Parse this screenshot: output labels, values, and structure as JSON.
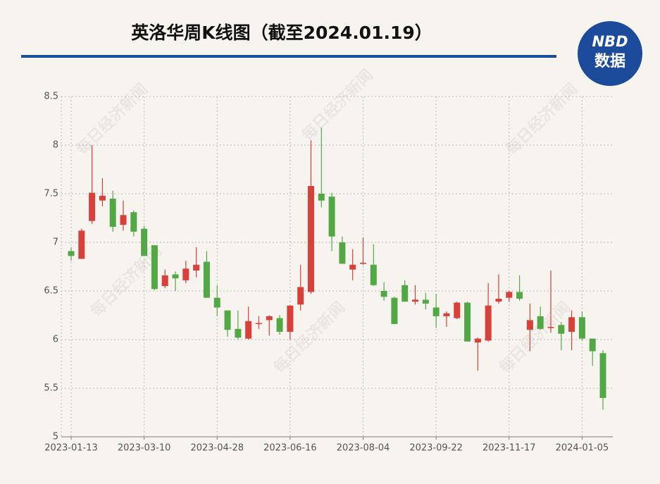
{
  "chart_data": {
    "type": "candlestick",
    "title": "英洛华周K线图（截至2024.01.19）",
    "logo": [
      "NBD",
      "数据"
    ],
    "watermark": "每日经济新闻",
    "categories": [
      "2023-01-13",
      null,
      null,
      null,
      null,
      null,
      null,
      "2023-03-10",
      null,
      null,
      null,
      null,
      null,
      null,
      "2023-04-28",
      null,
      null,
      null,
      null,
      null,
      null,
      "2023-06-16",
      null,
      null,
      null,
      null,
      null,
      null,
      "2023-08-04",
      null,
      null,
      null,
      null,
      null,
      null,
      "2023-09-22",
      null,
      null,
      null,
      null,
      null,
      null,
      "2023-11-17",
      null,
      null,
      null,
      null,
      null,
      null,
      "2024-01-05",
      null,
      null
    ],
    "open": [
      6.91,
      6.83,
      7.22,
      7.43,
      7.45,
      7.18,
      7.31,
      7.14,
      6.97,
      6.55,
      6.67,
      6.61,
      6.71,
      6.8,
      6.43,
      6.3,
      6.11,
      6.01,
      6.16,
      6.2,
      6.22,
      6.08,
      6.36,
      6.49,
      7.5,
      7.47,
      7.0,
      6.72,
      6.78,
      6.77,
      6.5,
      6.43,
      6.56,
      6.39,
      6.41,
      6.33,
      6.24,
      6.22,
      6.38,
      5.97,
      5.99,
      6.39,
      6.43,
      6.49,
      6.1,
      6.24,
      6.12,
      6.15,
      6.08,
      6.23,
      6.01,
      5.86
    ],
    "high": [
      6.95,
      7.14,
      8.0,
      7.66,
      7.53,
      7.43,
      7.33,
      7.17,
      6.97,
      6.72,
      6.7,
      6.81,
      6.95,
      6.91,
      6.56,
      6.3,
      6.3,
      6.34,
      6.24,
      6.25,
      6.25,
      6.35,
      6.77,
      8.05,
      8.18,
      7.51,
      7.06,
      6.93,
      7.05,
      6.98,
      6.59,
      6.44,
      6.61,
      6.56,
      6.48,
      6.47,
      6.29,
      6.39,
      6.39,
      6.02,
      6.58,
      6.67,
      6.5,
      6.66,
      6.37,
      6.34,
      6.71,
      6.18,
      6.3,
      6.29,
      6.01,
      5.89
    ],
    "low": [
      6.81,
      6.83,
      7.19,
      7.37,
      7.11,
      7.12,
      7.06,
      6.86,
      6.51,
      6.53,
      6.5,
      6.58,
      6.64,
      6.43,
      6.24,
      6.03,
      6.0,
      6.0,
      6.11,
      6.04,
      6.05,
      6.0,
      6.3,
      6.47,
      7.36,
      6.91,
      6.78,
      6.61,
      6.77,
      6.55,
      6.4,
      6.16,
      6.39,
      6.36,
      6.31,
      6.12,
      6.13,
      6.21,
      5.98,
      5.68,
      5.98,
      6.37,
      6.39,
      6.4,
      5.88,
      6.1,
      6.07,
      5.89,
      5.89,
      5.99,
      5.73,
      5.28
    ],
    "close": [
      6.86,
      7.12,
      7.51,
      7.48,
      7.16,
      7.28,
      7.11,
      6.86,
      6.52,
      6.66,
      6.63,
      6.73,
      6.77,
      6.43,
      6.33,
      6.1,
      6.02,
      6.19,
      6.17,
      6.24,
      6.08,
      6.35,
      6.54,
      7.58,
      7.43,
      7.06,
      6.78,
      6.77,
      6.79,
      6.56,
      6.44,
      6.16,
      6.39,
      6.41,
      6.37,
      6.24,
      6.27,
      6.38,
      5.98,
      6.01,
      6.35,
      6.42,
      6.49,
      6.42,
      6.2,
      6.11,
      6.13,
      6.06,
      6.23,
      6.01,
      5.88,
      5.4
    ],
    "up_color": "#d8403a",
    "down_color": "#53a846",
    "ylim": [
      5,
      8.5
    ],
    "yticks": [
      5,
      5.5,
      6,
      6.5,
      7,
      7.5,
      8,
      8.5
    ],
    "grid": true
  }
}
